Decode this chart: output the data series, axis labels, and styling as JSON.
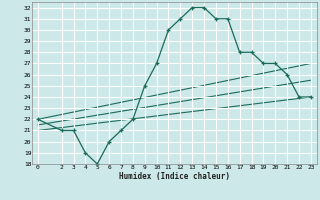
{
  "xlabel": "Humidex (Indice chaleur)",
  "bg_color": "#cce8e8",
  "grid_color": "#ffffff",
  "line_color": "#1a6b5a",
  "xlim": [
    -0.5,
    23.5
  ],
  "ylim": [
    18,
    32.5
  ],
  "xticks": [
    0,
    2,
    3,
    4,
    5,
    6,
    7,
    8,
    9,
    10,
    11,
    12,
    13,
    14,
    15,
    16,
    17,
    18,
    19,
    20,
    21,
    22,
    23
  ],
  "yticks": [
    18,
    19,
    20,
    21,
    22,
    23,
    24,
    25,
    26,
    27,
    28,
    29,
    30,
    31,
    32
  ],
  "line1_x": [
    0,
    2,
    3,
    4,
    5,
    6,
    7,
    8,
    9,
    10,
    11,
    12,
    13,
    14,
    15,
    16,
    17,
    18,
    19,
    20,
    21,
    22,
    23
  ],
  "line1_y": [
    22,
    21,
    21,
    19,
    18,
    20,
    21,
    22,
    25,
    27,
    30,
    31,
    32,
    32,
    31,
    31,
    28,
    28,
    27,
    27,
    26,
    24,
    24
  ],
  "line2_x": [
    0,
    23
  ],
  "line2_y": [
    22,
    27
  ],
  "line3_x": [
    0,
    23
  ],
  "line3_y": [
    21.5,
    25.5
  ],
  "line4_x": [
    0,
    23
  ],
  "line4_y": [
    21,
    24
  ]
}
